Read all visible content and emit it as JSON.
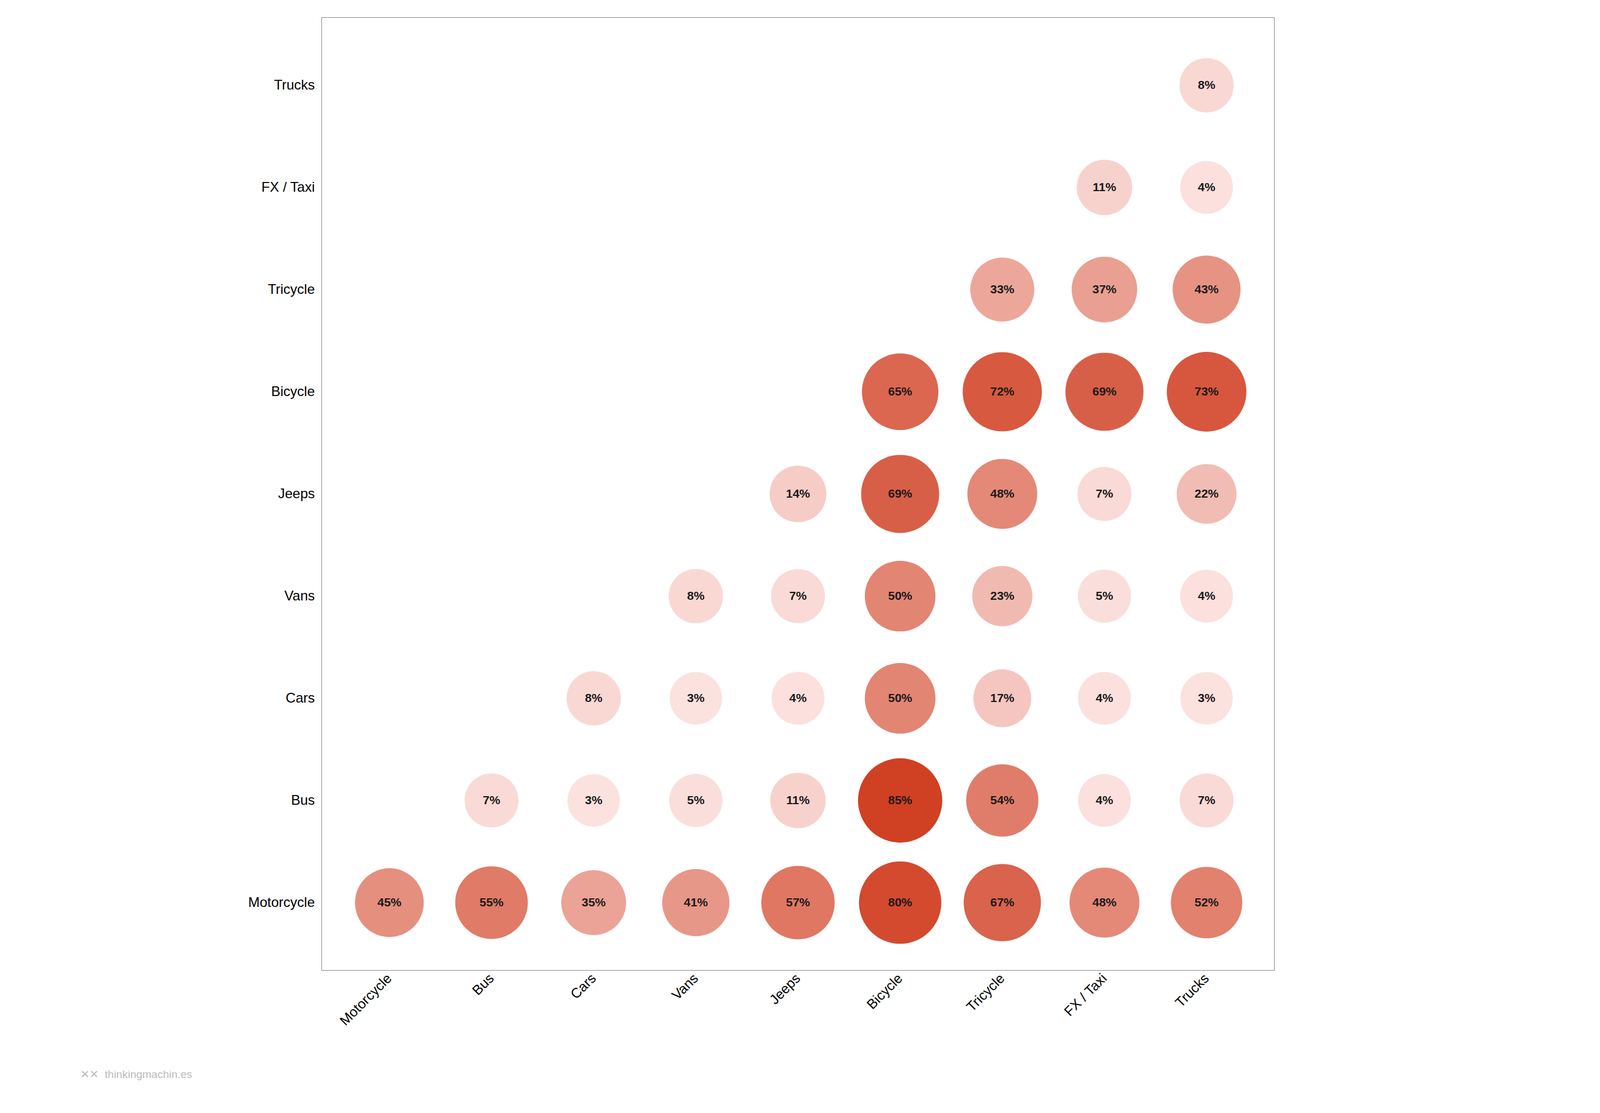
{
  "chart_data": {
    "type": "heatmap",
    "categories": [
      "Motorcycle",
      "Bus",
      "Cars",
      "Vans",
      "Jeeps",
      "Bicycle",
      "Tricycle",
      "FX / Taxi",
      "Trucks"
    ],
    "values": [
      [
        45,
        55,
        35,
        41,
        57,
        80,
        67,
        48,
        52
      ],
      [
        null,
        7,
        3,
        5,
        11,
        85,
        54,
        4,
        7
      ],
      [
        null,
        null,
        8,
        3,
        4,
        50,
        17,
        4,
        3
      ],
      [
        null,
        null,
        null,
        8,
        7,
        50,
        23,
        5,
        4
      ],
      [
        null,
        null,
        null,
        null,
        14,
        69,
        48,
        7,
        22
      ],
      [
        null,
        null,
        null,
        null,
        null,
        65,
        72,
        69,
        73
      ],
      [
        null,
        null,
        null,
        null,
        null,
        null,
        33,
        37,
        43
      ],
      [
        null,
        null,
        null,
        null,
        null,
        null,
        null,
        11,
        4
      ],
      [
        null,
        null,
        null,
        null,
        null,
        null,
        null,
        null,
        8
      ]
    ],
    "value_labels": [
      [
        "45%",
        "55%",
        "35%",
        "41%",
        "57%",
        "80%",
        "67%",
        "48%",
        "52%"
      ],
      [
        null,
        "7%",
        "3%",
        "5%",
        "11%",
        "85%",
        "54%",
        "4%",
        "7%"
      ],
      [
        null,
        null,
        "8%",
        "3%",
        "4%",
        "50%",
        "17%",
        "4%",
        "3%"
      ],
      [
        null,
        null,
        null,
        "8%",
        "7%",
        "50%",
        "23%",
        "5%",
        "4%"
      ],
      [
        null,
        null,
        null,
        null,
        "14%",
        "69%",
        "48%",
        "7%",
        "22%"
      ],
      [
        null,
        null,
        null,
        null,
        null,
        "65%",
        "72%",
        "69%",
        "73%"
      ],
      [
        null,
        null,
        null,
        null,
        null,
        null,
        "33%",
        "37%",
        "43%"
      ],
      [
        null,
        null,
        null,
        null,
        null,
        null,
        null,
        "11%",
        "4%"
      ],
      [
        null,
        null,
        null,
        null,
        null,
        null,
        null,
        null,
        "8%"
      ]
    ],
    "value_range": [
      0,
      100
    ],
    "color": [
      "#fde8e6",
      "#c82200"
    ],
    "data_labels": true,
    "grid": false,
    "annotations": [
      {
        "text": "✕✕  thinkingmachin.es"
      }
    ]
  }
}
